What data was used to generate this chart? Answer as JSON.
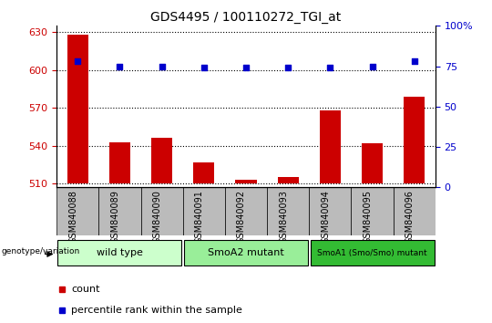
{
  "title": "GDS4495 / 100110272_TGI_at",
  "samples": [
    "GSM840088",
    "GSM840089",
    "GSM840090",
    "GSM840091",
    "GSM840092",
    "GSM840093",
    "GSM840094",
    "GSM840095",
    "GSM840096"
  ],
  "counts": [
    628,
    543,
    546,
    527,
    513,
    515,
    568,
    542,
    579
  ],
  "percentile_ranks": [
    78,
    75,
    75,
    74,
    74,
    74,
    74,
    75,
    78
  ],
  "ylim_left": [
    507,
    635
  ],
  "ylim_right": [
    0,
    100
  ],
  "yticks_left": [
    510,
    540,
    570,
    600,
    630
  ],
  "yticks_right": [
    0,
    25,
    50,
    75,
    100
  ],
  "bar_color": "#cc0000",
  "dot_color": "#0000cc",
  "bar_bottom": 510,
  "groups": [
    {
      "label": "wild type",
      "start": 0,
      "end": 3,
      "color": "#ccffcc"
    },
    {
      "label": "SmoA2 mutant",
      "start": 3,
      "end": 6,
      "color": "#99ee99"
    },
    {
      "label": "SmoA1 (Smo/Smo) mutant",
      "start": 6,
      "end": 9,
      "color": "#33bb33"
    }
  ],
  "genotype_label": "genotype/variation",
  "legend_count_label": "count",
  "legend_pct_label": "percentile rank within the sample",
  "tick_color_left": "#cc0000",
  "tick_color_right": "#0000cc",
  "grid_color": "#000000",
  "bg_color": "#ffffff",
  "tick_bg_color": "#bbbbbb"
}
